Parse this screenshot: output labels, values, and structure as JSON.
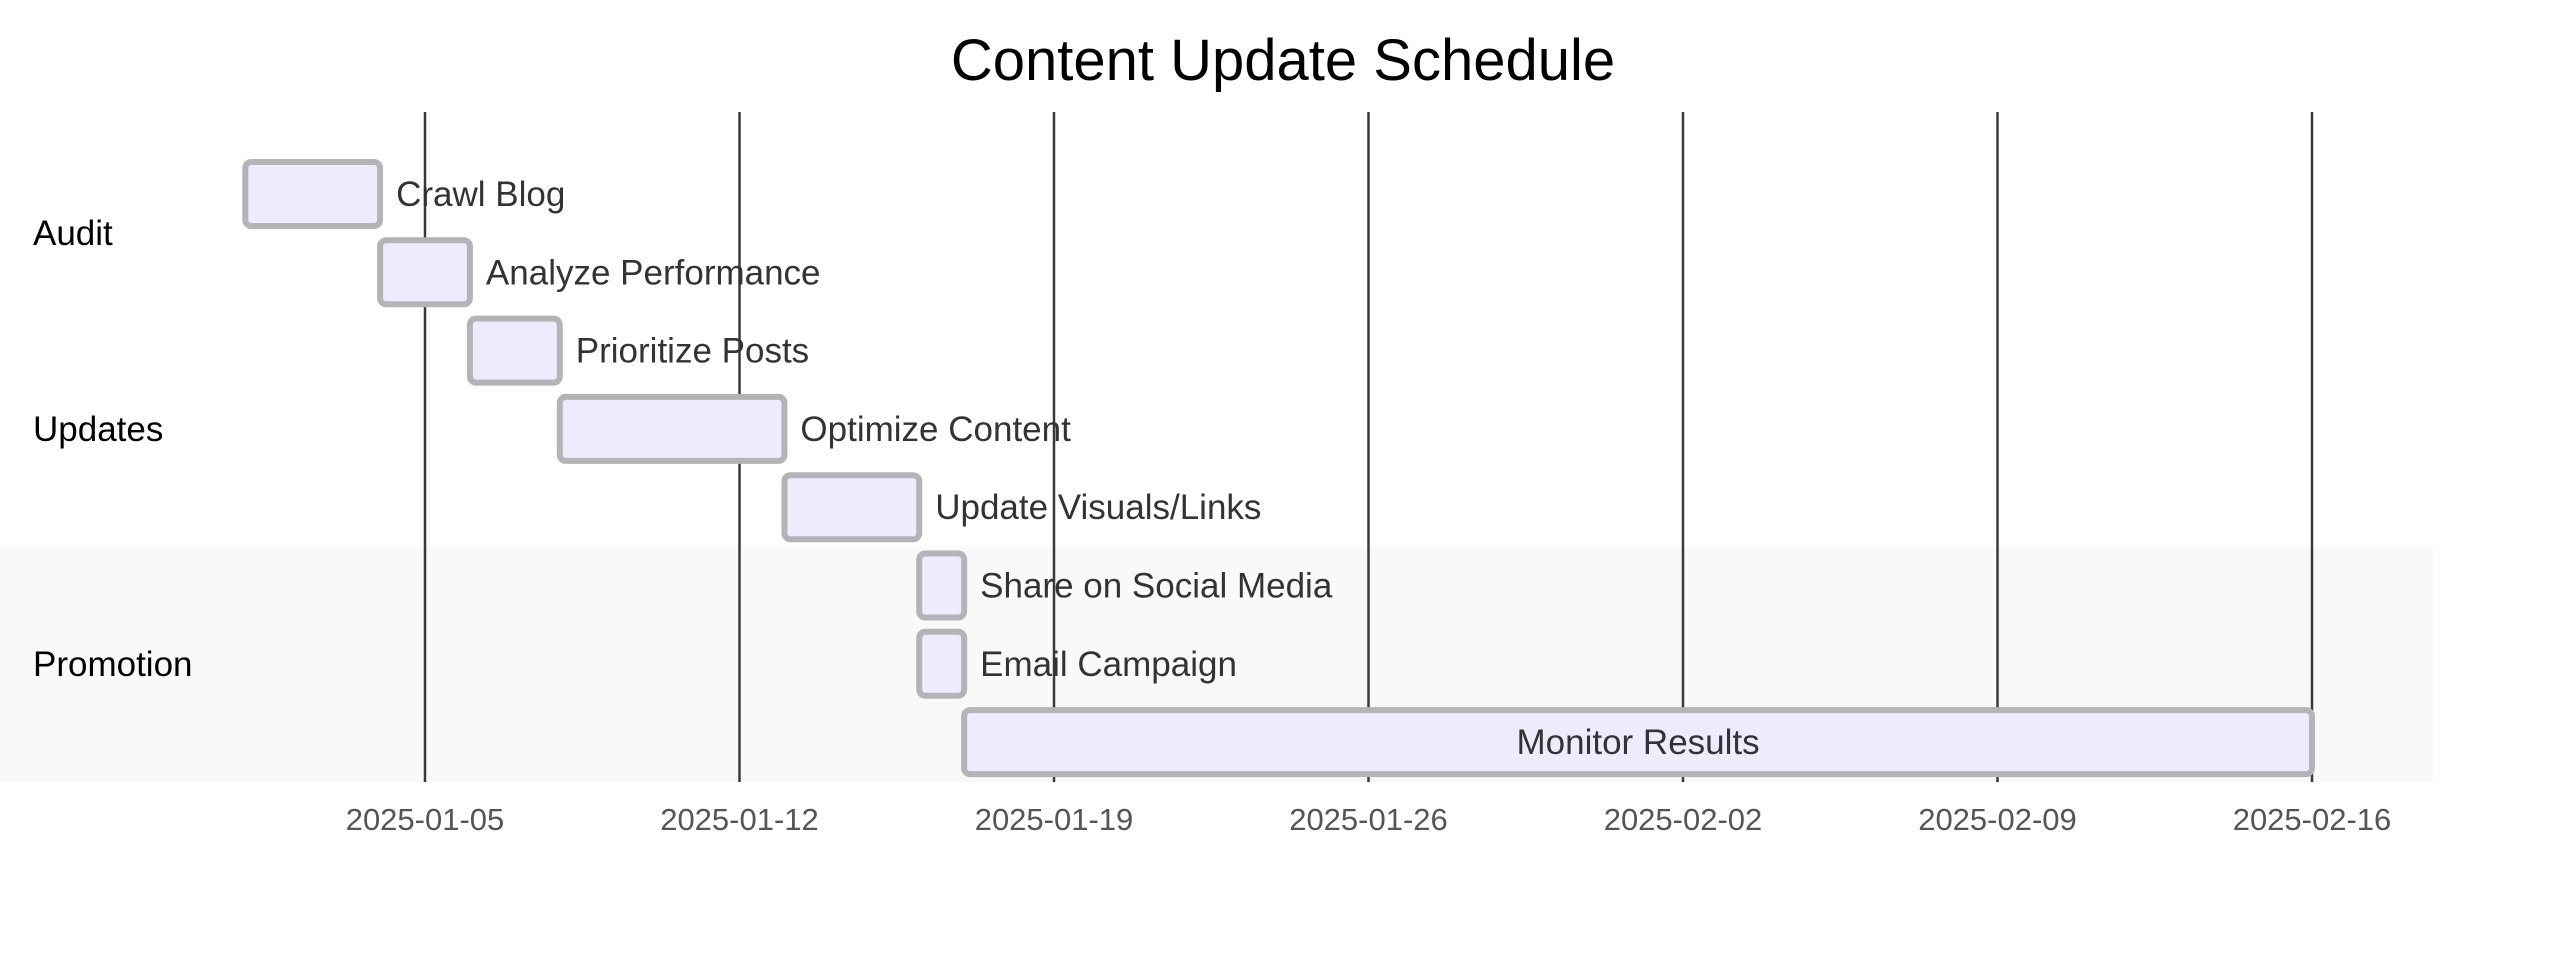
{
  "chart_data": {
    "type": "gantt",
    "title": "Content Update Schedule",
    "x_ticks": [
      "2025-01-05",
      "2025-01-12",
      "2025-01-19",
      "2025-01-26",
      "2025-02-02",
      "2025-02-09",
      "2025-02-16"
    ],
    "x_range": [
      "2024-12-31",
      "2025-02-19"
    ],
    "sections": [
      {
        "name": "Audit",
        "background": "#ffffff"
      },
      {
        "name": "Updates",
        "background": "#ffffff"
      },
      {
        "name": "Promotion",
        "background": "#f9f9f9"
      }
    ],
    "tasks": [
      {
        "name": "Crawl Blog",
        "section": "Audit",
        "start": "2025-01-01",
        "end": "2025-01-04"
      },
      {
        "name": "Analyze Performance",
        "section": "Audit",
        "start": "2025-01-04",
        "end": "2025-01-06"
      },
      {
        "name": "Prioritize Posts",
        "section": "Updates",
        "start": "2025-01-06",
        "end": "2025-01-08"
      },
      {
        "name": "Optimize Content",
        "section": "Updates",
        "start": "2025-01-08",
        "end": "2025-01-13"
      },
      {
        "name": "Update Visuals/Links",
        "section": "Updates",
        "start": "2025-01-13",
        "end": "2025-01-16"
      },
      {
        "name": "Share on Social Media",
        "section": "Promotion",
        "start": "2025-01-16",
        "end": "2025-01-17"
      },
      {
        "name": "Email Campaign",
        "section": "Promotion",
        "start": "2025-01-16",
        "end": "2025-01-17"
      },
      {
        "name": "Monitor Results",
        "section": "Promotion",
        "start": "2025-01-17",
        "end": "2025-02-16"
      }
    ],
    "colors": {
      "bar_fill": "#ececfd",
      "bar_stroke": "#b4b4b8",
      "grid": "#3a3a3a",
      "tick_text": "#555555",
      "task_text": "#333333",
      "promotion_band": "#f9f9f9"
    },
    "grid": true
  }
}
